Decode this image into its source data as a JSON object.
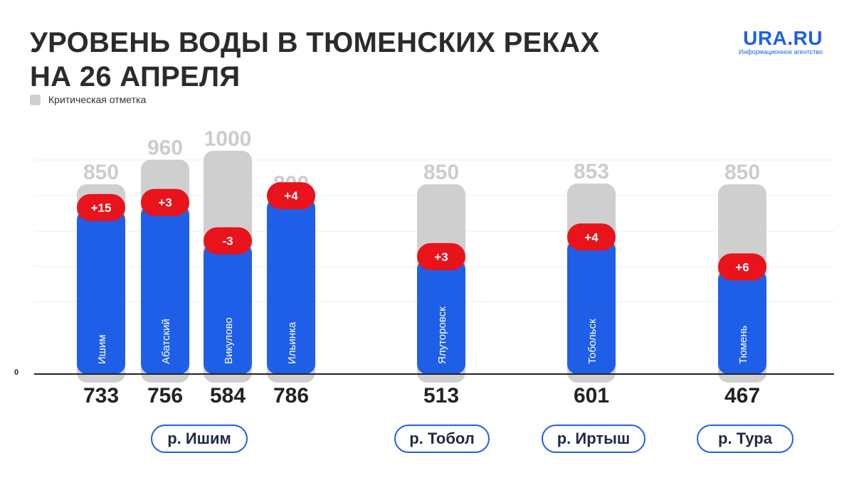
{
  "header": {
    "title_line1": "УРОВЕНЬ ВОДЫ В ТЮМЕНСКИХ РЕКАХ",
    "title_line2": "НА 26 АПРЕЛЯ"
  },
  "logo": {
    "name": "URA.RU",
    "tagline": "Информационное агентство"
  },
  "legend": {
    "critical_label": "Критическая отметка"
  },
  "colors": {
    "level": "#1f5fe8",
    "critical": "#cfcfcf",
    "change": "#e8131b",
    "critical_text": "#cccccc",
    "value_text": "#222222"
  },
  "chart_data": {
    "type": "bar",
    "zero_label": "0",
    "categories": [
      "Ишим",
      "Абатский",
      "Викулово",
      "Ильинка",
      "Ялуторовск",
      "Тобольск",
      "Тюмень"
    ],
    "series": [
      {
        "name": "",
        "role": "level",
        "values": [
          733,
          756,
          584,
          786,
          513,
          601,
          467
        ]
      },
      {
        "name": "Критическая отметка",
        "role": "critical",
        "values": [
          850,
          960,
          1000,
          800,
          850,
          853,
          850
        ]
      }
    ],
    "changes": [
      "+15",
      "+3",
      "-3",
      "+4",
      "+3",
      "+4",
      "+6"
    ],
    "rivers": [
      {
        "label": "р. Ишим",
        "stations": [
          "Ишим",
          "Абатский",
          "Викулово",
          "Ильинка"
        ]
      },
      {
        "label": "р. Тобол",
        "stations": [
          "Ялуторовск"
        ]
      },
      {
        "label": "р. Иртыш",
        "stations": [
          "Тобольск"
        ]
      },
      {
        "label": "р. Тура",
        "stations": [
          "Тюмень"
        ]
      }
    ],
    "grid": true,
    "ylim": [
      0,
      1000
    ]
  }
}
